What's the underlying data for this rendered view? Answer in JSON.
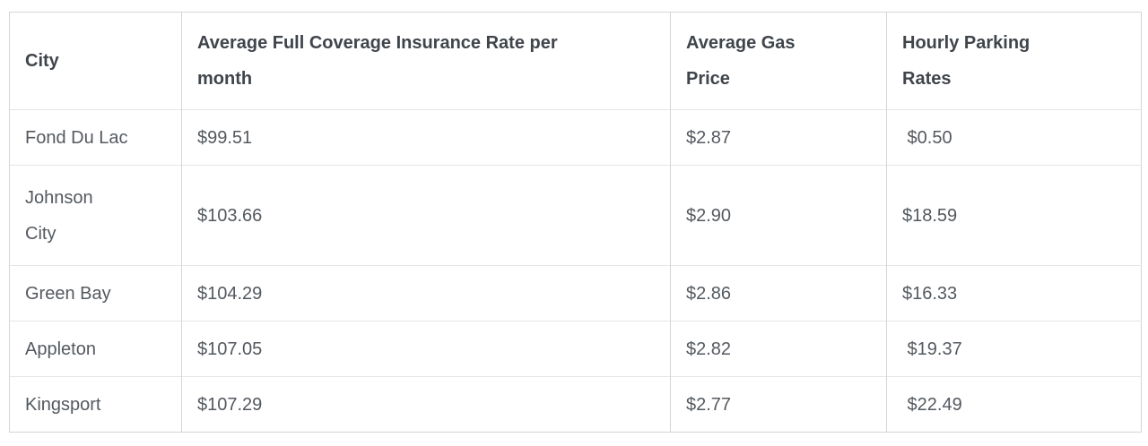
{
  "colors": {
    "background": "#ffffff",
    "header_text": "#40454b",
    "body_text": "#54595f",
    "border_vertical": "#d3d6d8",
    "border_horizontal": "#e4e5e7"
  },
  "table": {
    "columns": [
      "City",
      "Average Full Coverage Insurance Rate per\nmonth",
      "Average Gas\nPrice",
      "Hourly Parking\nRates"
    ],
    "rows": [
      [
        "Fond Du Lac",
        "$99.51",
        "$2.87",
        " $0.50"
      ],
      [
        "Johnson\nCity",
        "$103.66",
        "$2.90",
        "$18.59"
      ],
      [
        "Green Bay",
        "$104.29",
        "$2.86",
        "$16.33"
      ],
      [
        "Appleton",
        "$107.05",
        "$2.82",
        " $19.37"
      ],
      [
        "Kingsport",
        "$107.29",
        "$2.77",
        " $22.49"
      ]
    ]
  },
  "chart_data": {
    "type": "table",
    "title": "",
    "columns": [
      "City",
      "Average Full Coverage Insurance Rate per month",
      "Average Gas Price",
      "Hourly Parking Rates"
    ],
    "rows": [
      [
        "Fond Du Lac",
        "$99.51",
        "$2.87",
        "$0.50"
      ],
      [
        "Johnson City",
        "$103.66",
        "$2.90",
        "$18.59"
      ],
      [
        "Green Bay",
        "$104.29",
        "$2.86",
        "$16.33"
      ],
      [
        "Appleton",
        "$107.05",
        "$2.82",
        "$19.37"
      ],
      [
        "Kingsport",
        "$107.29",
        "$2.77",
        "$22.49"
      ]
    ],
    "series": [
      {
        "name": "Average Full Coverage Insurance Rate per month",
        "values": [
          99.51,
          103.66,
          104.29,
          107.05,
          107.29
        ]
      },
      {
        "name": "Average Gas Price",
        "values": [
          2.87,
          2.9,
          2.86,
          2.82,
          2.77
        ]
      },
      {
        "name": "Hourly Parking Rates",
        "values": [
          0.5,
          18.59,
          16.33,
          19.37,
          22.49
        ]
      }
    ],
    "categories": [
      "Fond Du Lac",
      "Johnson City",
      "Green Bay",
      "Appleton",
      "Kingsport"
    ],
    "layout": {
      "grid": "full-borders",
      "header_row": true,
      "legend_position": "none"
    }
  }
}
